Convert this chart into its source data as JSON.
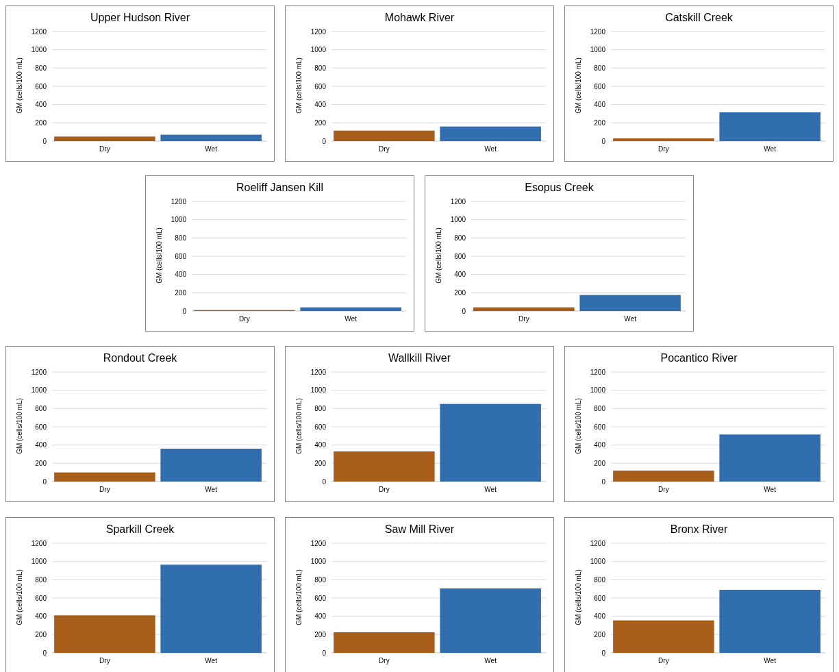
{
  "chart_data": [
    {
      "type": "bar",
      "title": "Upper Hudson River",
      "ylabel": "GM (cells/100 mL)",
      "categories": [
        "Dry",
        "Wet"
      ],
      "values": [
        50,
        70
      ],
      "colors": [
        "#a65e1a",
        "#306eb0"
      ],
      "ylim": [
        0,
        1200
      ],
      "yticks": [
        0,
        200,
        400,
        600,
        800,
        1000,
        1200
      ],
      "grid": "y"
    },
    {
      "type": "bar",
      "title": "Mohawk River",
      "ylabel": "GM (cells/100 mL)",
      "categories": [
        "Dry",
        "Wet"
      ],
      "values": [
        115,
        160
      ],
      "colors": [
        "#a65e1a",
        "#306eb0"
      ],
      "ylim": [
        0,
        1200
      ],
      "yticks": [
        0,
        200,
        400,
        600,
        800,
        1000,
        1200
      ],
      "grid": "y"
    },
    {
      "type": "bar",
      "title": "Catskill Creek",
      "ylabel": "GM (cells/100 mL)",
      "categories": [
        "Dry",
        "Wet"
      ],
      "values": [
        30,
        315
      ],
      "colors": [
        "#a65e1a",
        "#306eb0"
      ],
      "ylim": [
        0,
        1200
      ],
      "yticks": [
        0,
        200,
        400,
        600,
        800,
        1000,
        1200
      ],
      "grid": "y"
    },
    {
      "type": "bar",
      "title": "Roeliff Jansen Kill",
      "ylabel": "GM (cells/100 mL)",
      "categories": [
        "Dry",
        "Wet"
      ],
      "values": [
        10,
        40
      ],
      "colors": [
        "#a65e1a",
        "#306eb0"
      ],
      "ylim": [
        0,
        1200
      ],
      "yticks": [
        0,
        200,
        400,
        600,
        800,
        1000,
        1200
      ],
      "grid": "y"
    },
    {
      "type": "bar",
      "title": "Esopus Creek",
      "ylabel": "GM (cells/100 mL)",
      "categories": [
        "Dry",
        "Wet"
      ],
      "values": [
        40,
        175
      ],
      "colors": [
        "#a65e1a",
        "#306eb0"
      ],
      "ylim": [
        0,
        1200
      ],
      "yticks": [
        0,
        200,
        400,
        600,
        800,
        1000,
        1200
      ],
      "grid": "y"
    },
    {
      "type": "bar",
      "title": "Rondout Creek",
      "ylabel": "GM (cells/100 mL)",
      "categories": [
        "Dry",
        "Wet"
      ],
      "values": [
        100,
        360
      ],
      "colors": [
        "#a65e1a",
        "#306eb0"
      ],
      "ylim": [
        0,
        1200
      ],
      "yticks": [
        0,
        200,
        400,
        600,
        800,
        1000,
        1200
      ],
      "grid": "y"
    },
    {
      "type": "bar",
      "title": "Wallkill River",
      "ylabel": "GM (cells/100 mL)",
      "categories": [
        "Dry",
        "Wet"
      ],
      "values": [
        330,
        850
      ],
      "colors": [
        "#a65e1a",
        "#306eb0"
      ],
      "ylim": [
        0,
        1200
      ],
      "yticks": [
        0,
        200,
        400,
        600,
        800,
        1000,
        1200
      ],
      "grid": "y"
    },
    {
      "type": "bar",
      "title": "Pocantico River",
      "ylabel": "GM (cells/100 mL)",
      "categories": [
        "Dry",
        "Wet"
      ],
      "values": [
        120,
        515
      ],
      "colors": [
        "#a65e1a",
        "#306eb0"
      ],
      "ylim": [
        0,
        1200
      ],
      "yticks": [
        0,
        200,
        400,
        600,
        800,
        1000,
        1200
      ],
      "grid": "y"
    },
    {
      "type": "bar",
      "title": "Sparkill Creek",
      "ylabel": "GM (cells/100 mL)",
      "categories": [
        "Dry",
        "Wet"
      ],
      "values": [
        410,
        965
      ],
      "colors": [
        "#a65e1a",
        "#306eb0"
      ],
      "ylim": [
        0,
        1200
      ],
      "yticks": [
        0,
        200,
        400,
        600,
        800,
        1000,
        1200
      ],
      "grid": "y"
    },
    {
      "type": "bar",
      "title": "Saw Mill River",
      "ylabel": "GM (cells/100 mL)",
      "categories": [
        "Dry",
        "Wet"
      ],
      "values": [
        225,
        705
      ],
      "colors": [
        "#a65e1a",
        "#306eb0"
      ],
      "ylim": [
        0,
        1200
      ],
      "yticks": [
        0,
        200,
        400,
        600,
        800,
        1000,
        1200
      ],
      "grid": "y"
    },
    {
      "type": "bar",
      "title": "Bronx River",
      "ylabel": "GM (cells/100 mL)",
      "categories": [
        "Dry",
        "Wet"
      ],
      "values": [
        355,
        690
      ],
      "colors": [
        "#a65e1a",
        "#306eb0"
      ],
      "ylim": [
        0,
        1200
      ],
      "yticks": [
        0,
        200,
        400,
        600,
        800,
        1000,
        1200
      ],
      "grid": "y"
    }
  ]
}
